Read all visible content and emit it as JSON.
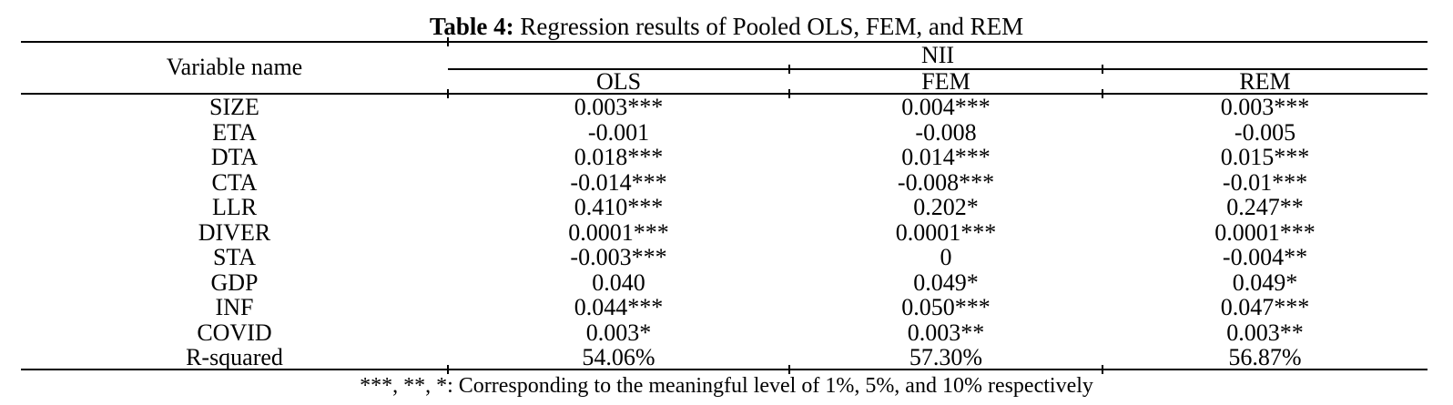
{
  "title": {
    "label": "Table 4:",
    "text": " Regression results of Pooled OLS, FEM, and REM"
  },
  "table": {
    "row_header": "Variable name",
    "group_header": "NII",
    "columns": [
      "OLS",
      "FEM",
      "REM"
    ],
    "rows": [
      {
        "name": "SIZE",
        "values": [
          "0.003***",
          "0.004***",
          "0.003***"
        ]
      },
      {
        "name": "ETA",
        "values": [
          "-0.001",
          "-0.008",
          "-0.005"
        ]
      },
      {
        "name": "DTA",
        "values": [
          "0.018***",
          "0.014***",
          "0.015***"
        ]
      },
      {
        "name": "CTA",
        "values": [
          "-0.014***",
          "-0.008***",
          "-0.01***"
        ]
      },
      {
        "name": "LLR",
        "values": [
          "0.410***",
          "0.202*",
          "0.247**"
        ]
      },
      {
        "name": "DIVER",
        "values": [
          "0.0001***",
          "0.0001***",
          "0.0001***"
        ]
      },
      {
        "name": "STA",
        "values": [
          "-0.003***",
          "0",
          "-0.004**"
        ]
      },
      {
        "name": "GDP",
        "values": [
          "0.040",
          "0.049*",
          "0.049*"
        ]
      },
      {
        "name": "INF",
        "values": [
          "0.044***",
          "0.050***",
          "0.047***"
        ]
      },
      {
        "name": "COVID",
        "values": [
          "0.003*",
          "0.003**",
          "0.003**"
        ]
      },
      {
        "name": "R-squared",
        "values": [
          "54.06%",
          "57.30%",
          "56.87%"
        ]
      }
    ],
    "footnote": "***, **, *: Corresponding to the meaningful level of 1%, 5%, and 10% respectively"
  },
  "colors": {
    "background": "#ffffff",
    "text": "#000000",
    "rule": "#000000"
  }
}
